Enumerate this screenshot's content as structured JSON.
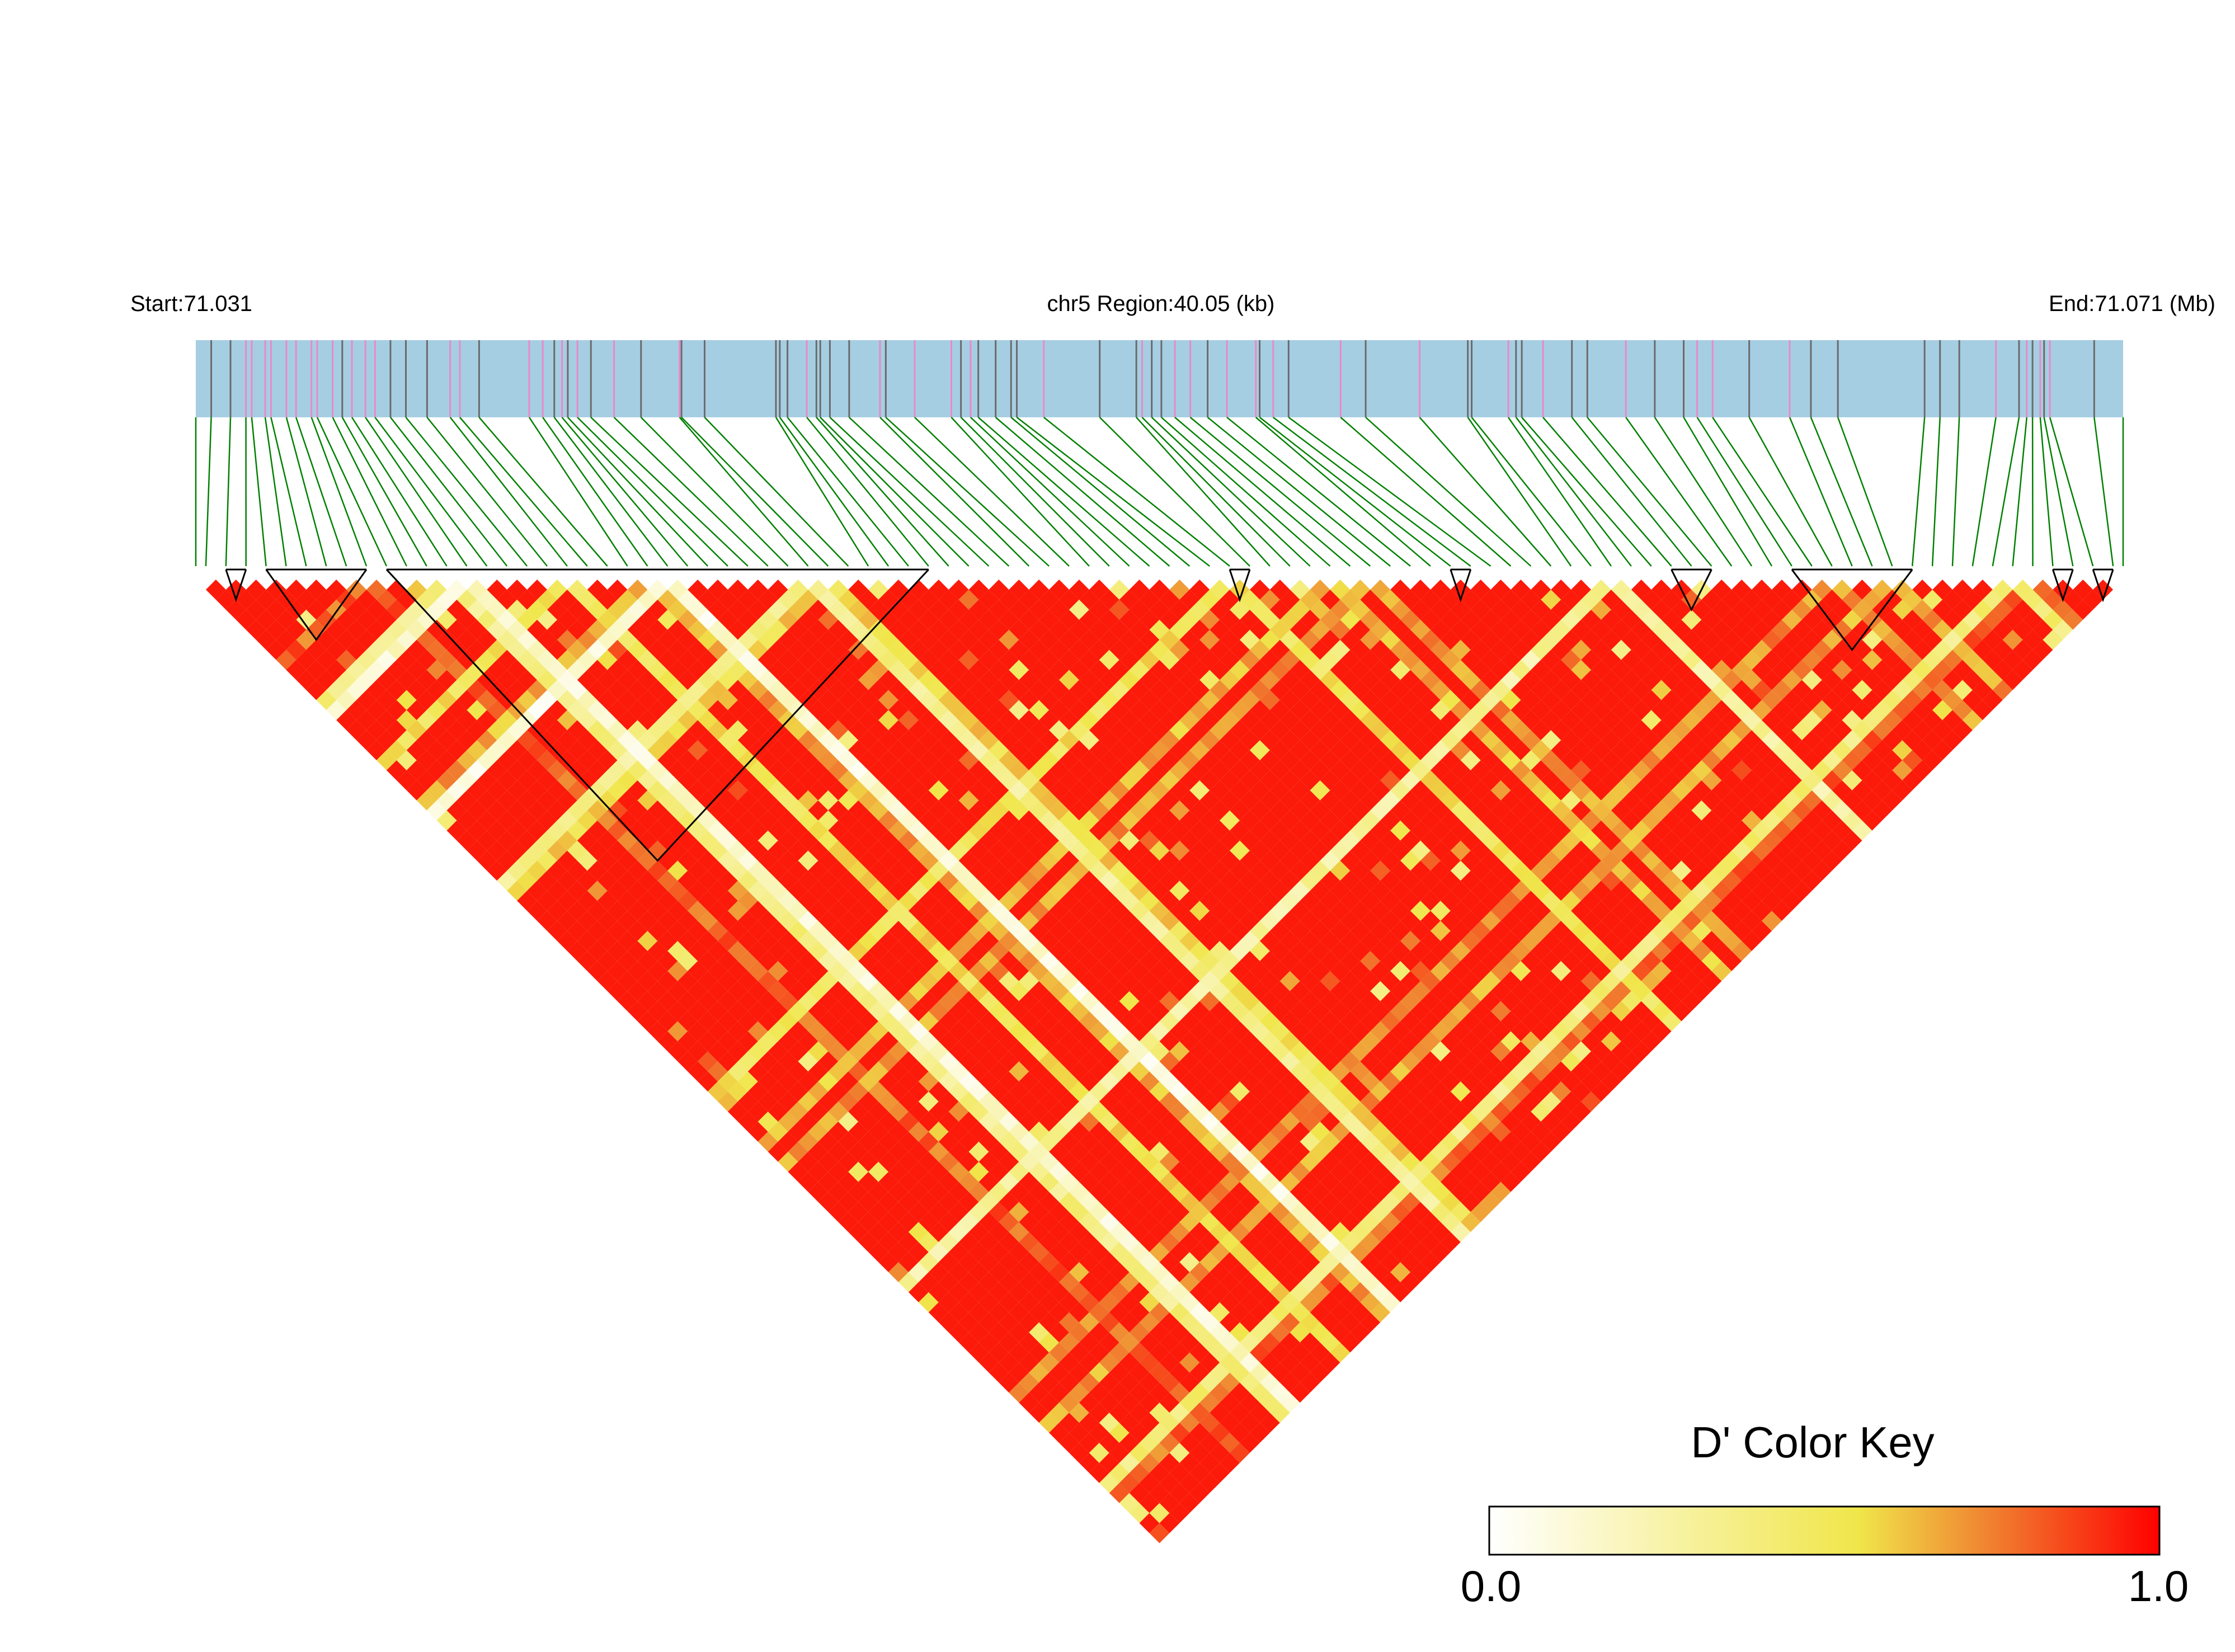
{
  "chart_data": {
    "type": "heatmap",
    "subtype": "ld-triangle",
    "chromosome": "chr5",
    "start_label": "Start:71.031",
    "region_label": "chr5 Region:40.05 (kb)",
    "end_label": "End:71.071 (Mb)",
    "start_mb": 71.031,
    "end_mb": 71.071,
    "region_kb": 40.05,
    "snp_count": 96,
    "snp_positions_fraction": [
      0.008,
      0.018,
      0.026,
      0.029,
      0.036,
      0.039,
      0.047,
      0.052,
      0.06,
      0.063,
      0.071,
      0.076,
      0.081,
      0.088,
      0.093,
      0.101,
      0.109,
      0.12,
      0.132,
      0.137,
      0.147,
      0.173,
      0.18,
      0.186,
      0.19,
      0.193,
      0.198,
      0.205,
      0.217,
      0.231,
      0.251,
      0.252,
      0.264,
      0.301,
      0.303,
      0.307,
      0.317,
      0.322,
      0.324,
      0.329,
      0.339,
      0.355,
      0.358,
      0.373,
      0.392,
      0.397,
      0.402,
      0.406,
      0.415,
      0.423,
      0.426,
      0.44,
      0.469,
      0.488,
      0.491,
      0.496,
      0.501,
      0.508,
      0.516,
      0.525,
      0.535,
      0.55,
      0.552,
      0.559,
      0.567,
      0.594,
      0.607,
      0.635,
      0.66,
      0.662,
      0.681,
      0.685,
      0.688,
      0.699,
      0.714,
      0.722,
      0.742,
      0.757,
      0.772,
      0.779,
      0.787,
      0.806,
      0.827,
      0.838,
      0.852,
      0.897,
      0.905,
      0.915,
      0.934,
      0.946,
      0.95,
      0.953,
      0.957,
      0.959,
      0.962,
      0.985
    ],
    "highlighted_snp_indices": [
      2,
      3,
      4,
      5,
      6,
      7,
      8,
      9,
      10,
      12,
      13,
      14,
      18,
      19,
      21,
      22,
      24,
      26,
      28,
      30,
      36,
      41,
      43,
      44,
      46,
      51,
      54,
      57,
      58,
      60,
      61,
      63,
      65,
      67,
      70,
      73,
      76,
      79,
      80,
      82,
      88,
      90,
      92,
      94
    ],
    "blocks": [
      {
        "start": 1,
        "end": 2
      },
      {
        "start": 3,
        "end": 8
      },
      {
        "start": 9,
        "end": 36
      },
      {
        "start": 51,
        "end": 52
      },
      {
        "start": 62,
        "end": 63
      },
      {
        "start": 73,
        "end": 75
      },
      {
        "start": 79,
        "end": 85
      },
      {
        "start": 92,
        "end": 93
      },
      {
        "start": 94,
        "end": 95
      }
    ],
    "ld_generator": {
      "seed": 7,
      "background_d_prime": 0.95,
      "stripe_min": 0.1,
      "stripe_max": 0.8
    },
    "colorscale": {
      "title": "D' Color Key",
      "min_label": "0.0",
      "max_label": "1.0",
      "min": 0.0,
      "max": 1.0,
      "stops": [
        {
          "offset": 0.0,
          "color": "#ffffff"
        },
        {
          "offset": 0.55,
          "color": "#f0e64a"
        },
        {
          "offset": 0.75,
          "color": "#f08030"
        },
        {
          "offset": 1.0,
          "color": "#ff0000"
        }
      ]
    },
    "colors": {
      "track_fill": "#a6cee3",
      "snp_line": "#6b6b6b",
      "snp_highlight": "#e88ac8",
      "connector": "#008000",
      "block_outline": "#000000"
    }
  }
}
